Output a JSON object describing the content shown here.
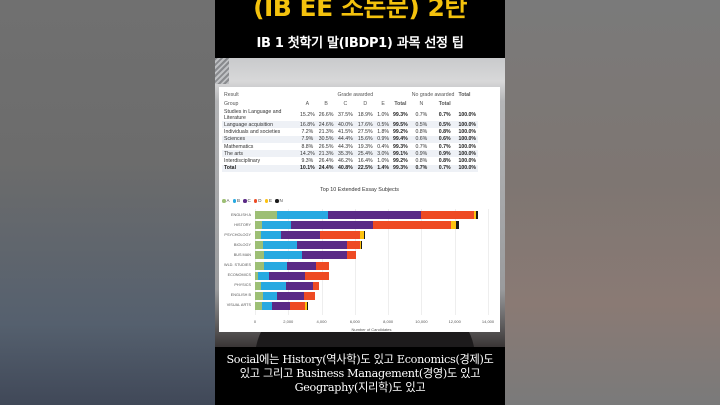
{
  "video": {
    "headline": "(IB EE 소논문) 2탄",
    "subheadline": "IB 1 첫학기 말(IBDP1) 과목 선정 팁",
    "caption": "Social에는 History(역사학)도 있고 Economics(경제)도 있고 그리고 Business Management(경영)도 있고 Geography(지리학)도 있고",
    "headline_color": "#f4c20d"
  },
  "table": {
    "header_result": "Result",
    "header_grade_awarded": "Grade awarded",
    "header_no_grade": "No grade awarded",
    "header_total": "Total",
    "columns": [
      "Group",
      "A",
      "B",
      "C",
      "D",
      "E",
      "Total",
      "N",
      "Total",
      ""
    ],
    "rows": [
      {
        "group": "Studies in Language and Literature",
        "A": "15.2%",
        "B": "26.6%",
        "C": "37.5%",
        "D": "18.9%",
        "E": "1.0%",
        "total": "99.3%",
        "N": "0.7%",
        "ntotal": "0.7%",
        "all": "100.0%"
      },
      {
        "group": "Language acquisition",
        "A": "16.8%",
        "B": "24.6%",
        "C": "40.0%",
        "D": "17.6%",
        "E": "0.5%",
        "total": "99.5%",
        "N": "0.5%",
        "ntotal": "0.5%",
        "all": "100.0%"
      },
      {
        "group": "Individuals and societies",
        "A": "7.2%",
        "B": "21.3%",
        "C": "41.5%",
        "D": "27.5%",
        "E": "1.8%",
        "total": "99.2%",
        "N": "0.8%",
        "ntotal": "0.8%",
        "all": "100.0%"
      },
      {
        "group": "Sciences",
        "A": "7.9%",
        "B": "30.5%",
        "C": "44.4%",
        "D": "15.6%",
        "E": "0.9%",
        "total": "99.4%",
        "N": "0.6%",
        "ntotal": "0.6%",
        "all": "100.0%"
      },
      {
        "group": "Mathematics",
        "A": "8.8%",
        "B": "26.5%",
        "C": "44.3%",
        "D": "19.3%",
        "E": "0.4%",
        "total": "99.3%",
        "N": "0.7%",
        "ntotal": "0.7%",
        "all": "100.0%"
      },
      {
        "group": "The arts",
        "A": "14.2%",
        "B": "21.3%",
        "C": "35.3%",
        "D": "25.4%",
        "E": "3.0%",
        "total": "99.1%",
        "N": "0.9%",
        "ntotal": "0.9%",
        "all": "100.0%"
      },
      {
        "group": "Interdisciplinary",
        "A": "9.3%",
        "B": "26.4%",
        "C": "46.2%",
        "D": "16.4%",
        "E": "1.0%",
        "total": "99.2%",
        "N": "0.8%",
        "ntotal": "0.8%",
        "all": "100.0%"
      },
      {
        "group": "Total",
        "A": "10.1%",
        "B": "24.4%",
        "C": "40.8%",
        "D": "22.5%",
        "E": "1.4%",
        "total": "99.3%",
        "N": "0.7%",
        "ntotal": "0.7%",
        "all": "100.0%"
      }
    ]
  },
  "chart_data": {
    "type": "bar",
    "orientation": "horizontal",
    "stacked": true,
    "title": "Top 10 Extended Essay Subjects",
    "xlabel": "Number of Candidates",
    "ylabel": "",
    "xlim": [
      0,
      14000
    ],
    "xticks": [
      "0",
      "2,000",
      "4,000",
      "6,000",
      "8,000",
      "10,000",
      "12,000",
      "14,000"
    ],
    "grid": true,
    "legend_position": "top-left",
    "categories": [
      "ENGLISH A",
      "HISTORY",
      "PSYCHOLOGY",
      "BIOLOGY",
      "BUS MAN",
      "WLD. STUDIES",
      "ECONOMICS",
      "PHYSICS",
      "ENGLISH B",
      "VISUAL ARTS"
    ],
    "series": [
      {
        "name": "A",
        "color": "#9dbf75",
        "values": [
          1330,
          440,
          390,
          470,
          520,
          550,
          190,
          360,
          470,
          410
        ]
      },
      {
        "name": "B",
        "color": "#27a9e1",
        "values": [
          3060,
          1710,
          1160,
          2070,
          2300,
          1350,
          640,
          1520,
          880,
          610
        ]
      },
      {
        "name": "C",
        "color": "#5b2a86",
        "values": [
          5610,
          4950,
          2370,
          2980,
          2700,
          1740,
          2180,
          1630,
          1580,
          1110
        ]
      },
      {
        "name": "D",
        "color": "#ee4a23",
        "values": [
          3140,
          4660,
          2400,
          800,
          580,
          810,
          1410,
          360,
          690,
          880
        ]
      },
      {
        "name": "E",
        "color": "#fdc20f",
        "values": [
          140,
          340,
          220,
          40,
          0,
          0,
          0,
          0,
          0,
          110
        ]
      },
      {
        "name": "N",
        "color": "#1a1a1a",
        "values": [
          110,
          130,
          90,
          20,
          0,
          0,
          0,
          0,
          0,
          80
        ]
      }
    ]
  }
}
